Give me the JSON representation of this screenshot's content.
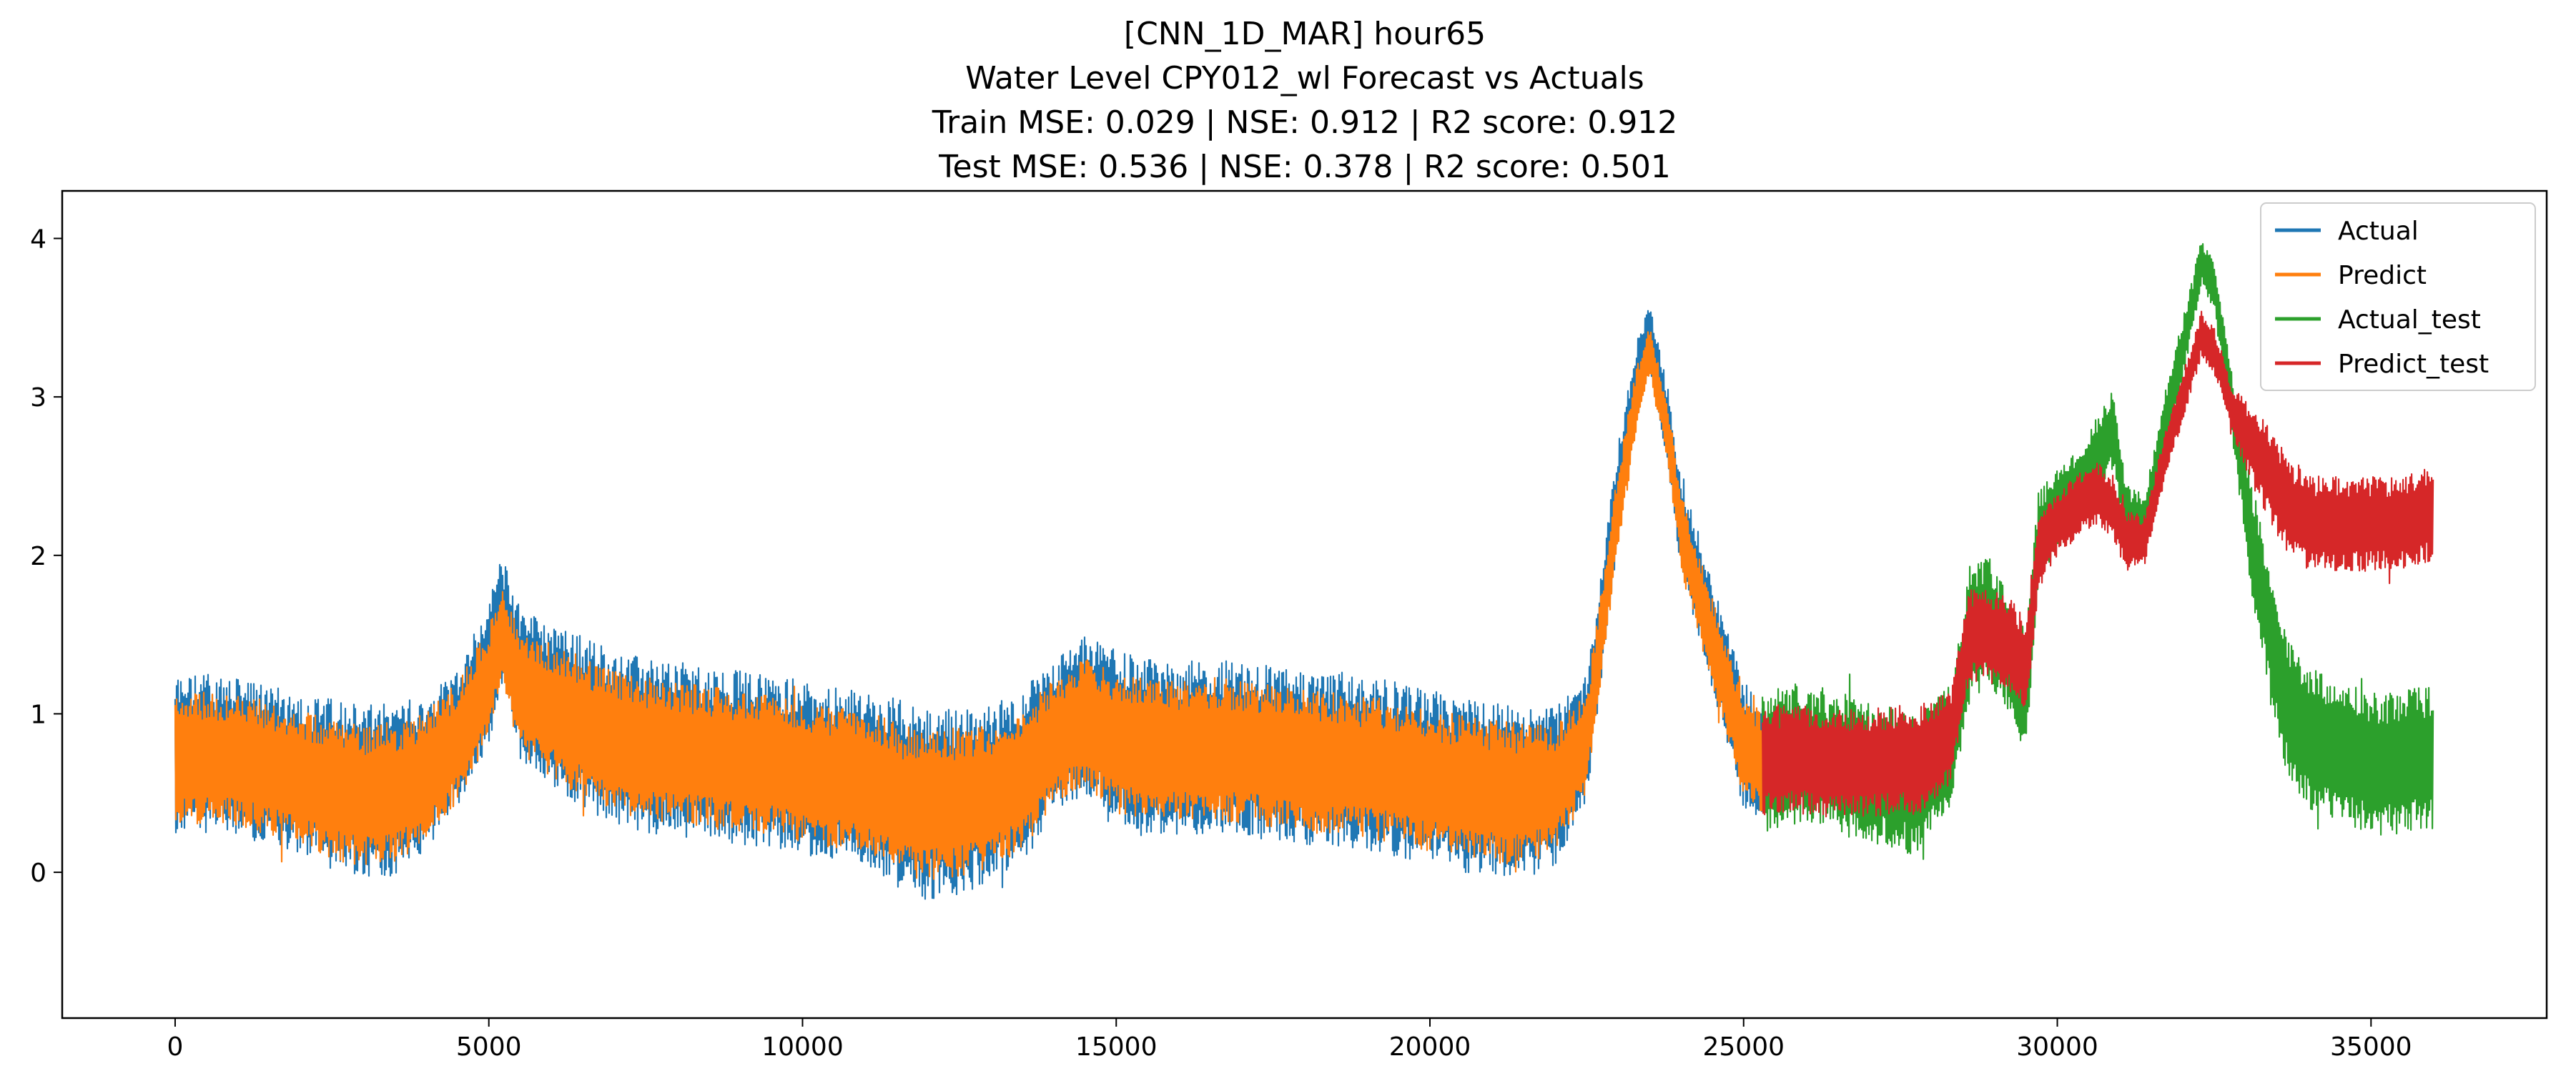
{
  "chart_data": {
    "type": "line",
    "title_lines": [
      "[CNN_1D_MAR] hour65",
      "Water Level CPY012_wl Forecast vs Actuals",
      "Train MSE: 0.029 | NSE: 0.912 | R2 score: 0.912",
      "Test  MSE: 0.536 | NSE: 0.378 | R2 score: 0.501"
    ],
    "xlabel": "",
    "ylabel": "",
    "xlim": [
      -1800,
      37800
    ],
    "ylim": [
      -0.92,
      4.3
    ],
    "x_ticks": [
      0,
      5000,
      10000,
      15000,
      20000,
      25000,
      30000,
      35000
    ],
    "x_tick_labels": [
      "0",
      "5000",
      "10000",
      "15000",
      "20000",
      "25000",
      "30000",
      "35000"
    ],
    "y_ticks": [
      0,
      1,
      2,
      3,
      4
    ],
    "y_tick_labels": [
      "0",
      "1",
      "2",
      "3",
      "4"
    ],
    "grid": false,
    "legend_position": "top-right",
    "series": [
      {
        "name": "Actual",
        "color": "#1f77b4",
        "x": [
          0,
          500,
          1000,
          1500,
          2000,
          2500,
          3000,
          3500,
          4000,
          4500,
          5000,
          5200,
          5500,
          6000,
          6500,
          7000,
          7500,
          8000,
          8500,
          9000,
          9500,
          10000,
          10500,
          11000,
          11500,
          12000,
          12500,
          13000,
          13500,
          14000,
          14500,
          15000,
          15500,
          16000,
          16500,
          17000,
          17500,
          18000,
          18500,
          19000,
          19500,
          20000,
          20500,
          21000,
          21500,
          22000,
          22500,
          23000,
          23300,
          23500,
          23800,
          24000,
          24500,
          25000,
          25300
        ],
        "mean": [
          0.75,
          0.75,
          0.72,
          0.68,
          0.62,
          0.55,
          0.5,
          0.52,
          0.62,
          0.85,
          1.25,
          1.6,
          1.2,
          1.05,
          0.95,
          0.85,
          0.8,
          0.78,
          0.75,
          0.72,
          0.7,
          0.66,
          0.62,
          0.58,
          0.5,
          0.42,
          0.45,
          0.5,
          0.6,
          0.85,
          1.0,
          0.85,
          0.8,
          0.78,
          0.8,
          0.78,
          0.75,
          0.72,
          0.7,
          0.68,
          0.65,
          0.6,
          0.55,
          0.52,
          0.5,
          0.55,
          0.85,
          2.4,
          3.1,
          3.4,
          2.8,
          2.2,
          1.5,
          0.8,
          0.7
        ],
        "amp": [
          0.5,
          0.5,
          0.5,
          0.5,
          0.5,
          0.55,
          0.55,
          0.55,
          0.5,
          0.45,
          0.45,
          0.4,
          0.5,
          0.5,
          0.55,
          0.55,
          0.55,
          0.55,
          0.55,
          0.55,
          0.55,
          0.55,
          0.55,
          0.55,
          0.6,
          0.6,
          0.6,
          0.55,
          0.55,
          0.5,
          0.5,
          0.55,
          0.55,
          0.55,
          0.55,
          0.55,
          0.55,
          0.55,
          0.55,
          0.55,
          0.55,
          0.55,
          0.55,
          0.55,
          0.55,
          0.5,
          0.4,
          0.3,
          0.25,
          0.2,
          0.25,
          0.3,
          0.35,
          0.4,
          0.4
        ]
      },
      {
        "name": "Predict",
        "color": "#ff7f0e",
        "x": [
          0,
          500,
          1000,
          1500,
          2000,
          2500,
          3000,
          3500,
          4000,
          4500,
          5000,
          5200,
          5500,
          6000,
          6500,
          7000,
          7500,
          8000,
          8500,
          9000,
          9500,
          10000,
          10500,
          11000,
          11500,
          12000,
          12500,
          13000,
          13500,
          14000,
          14500,
          15000,
          15500,
          16000,
          16500,
          17000,
          17500,
          18000,
          18500,
          19000,
          19500,
          20000,
          20500,
          21000,
          21500,
          22000,
          22500,
          23000,
          23300,
          23500,
          23800,
          24000,
          24500,
          25000,
          25300
        ],
        "mean": [
          0.7,
          0.72,
          0.7,
          0.66,
          0.6,
          0.53,
          0.48,
          0.5,
          0.6,
          0.82,
          1.2,
          1.5,
          1.15,
          1.02,
          0.92,
          0.83,
          0.78,
          0.76,
          0.73,
          0.7,
          0.68,
          0.64,
          0.6,
          0.56,
          0.48,
          0.42,
          0.44,
          0.48,
          0.58,
          0.82,
          0.95,
          0.82,
          0.78,
          0.76,
          0.78,
          0.76,
          0.73,
          0.7,
          0.68,
          0.66,
          0.63,
          0.58,
          0.54,
          0.51,
          0.49,
          0.54,
          0.82,
          2.3,
          3.0,
          3.3,
          2.75,
          2.15,
          1.45,
          0.78,
          0.7
        ],
        "amp": [
          0.4,
          0.42,
          0.42,
          0.42,
          0.42,
          0.45,
          0.45,
          0.45,
          0.42,
          0.38,
          0.35,
          0.3,
          0.4,
          0.42,
          0.45,
          0.45,
          0.45,
          0.45,
          0.45,
          0.45,
          0.45,
          0.45,
          0.45,
          0.45,
          0.48,
          0.48,
          0.48,
          0.45,
          0.45,
          0.4,
          0.4,
          0.45,
          0.45,
          0.45,
          0.45,
          0.45,
          0.45,
          0.45,
          0.45,
          0.45,
          0.45,
          0.45,
          0.45,
          0.45,
          0.45,
          0.4,
          0.32,
          0.25,
          0.2,
          0.15,
          0.2,
          0.25,
          0.28,
          0.32,
          0.32
        ]
      },
      {
        "name": "Actual_test",
        "color": "#2ca02c",
        "x": [
          25300,
          25800,
          26300,
          26800,
          27300,
          27800,
          28300,
          28600,
          28900,
          29200,
          29500,
          29700,
          30000,
          30300,
          30600,
          30900,
          31100,
          31400,
          31700,
          32000,
          32300,
          32500,
          32800,
          33100,
          33400,
          33700,
          34000,
          34300,
          34600,
          34900,
          35200,
          35500,
          35800,
          36000
        ],
        "mean": [
          0.7,
          0.75,
          0.72,
          0.65,
          0.6,
          0.55,
          0.8,
          1.5,
          1.6,
          1.4,
          1.1,
          2.1,
          2.3,
          2.4,
          2.6,
          2.8,
          2.2,
          2.2,
          2.8,
          3.3,
          3.85,
          3.7,
          2.9,
          2.1,
          1.5,
          1.0,
          0.85,
          0.8,
          0.75,
          0.7,
          0.68,
          0.7,
          0.72,
          0.72
        ],
        "amp": [
          0.45,
          0.45,
          0.45,
          0.45,
          0.45,
          0.45,
          0.4,
          0.45,
          0.4,
          0.4,
          0.4,
          0.3,
          0.25,
          0.25,
          0.25,
          0.25,
          0.25,
          0.2,
          0.2,
          0.2,
          0.15,
          0.15,
          0.2,
          0.35,
          0.45,
          0.45,
          0.45,
          0.45,
          0.45,
          0.45,
          0.45,
          0.45,
          0.45,
          0.45
        ]
      },
      {
        "name": "Predict_test",
        "color": "#d62728",
        "x": [
          25300,
          25800,
          26300,
          26800,
          27300,
          27800,
          28300,
          28600,
          28900,
          29200,
          29500,
          29700,
          30000,
          30300,
          30600,
          30900,
          31100,
          31400,
          31700,
          32000,
          32300,
          32500,
          32800,
          33100,
          33400,
          33700,
          34000,
          34300,
          34600,
          34900,
          35200,
          35500,
          35800,
          36000
        ],
        "mean": [
          0.7,
          0.72,
          0.7,
          0.68,
          0.7,
          0.72,
          0.85,
          1.5,
          1.5,
          1.45,
          1.3,
          2.0,
          2.2,
          2.3,
          2.4,
          2.3,
          2.1,
          2.1,
          2.6,
          3.0,
          3.4,
          3.3,
          2.9,
          2.7,
          2.5,
          2.3,
          2.2,
          2.2,
          2.2,
          2.2,
          2.2,
          2.2,
          2.25,
          2.25
        ],
        "amp": [
          0.35,
          0.35,
          0.35,
          0.35,
          0.35,
          0.35,
          0.3,
          0.3,
          0.3,
          0.3,
          0.3,
          0.25,
          0.2,
          0.2,
          0.2,
          0.2,
          0.2,
          0.15,
          0.15,
          0.15,
          0.15,
          0.15,
          0.15,
          0.25,
          0.3,
          0.3,
          0.3,
          0.3,
          0.3,
          0.3,
          0.3,
          0.3,
          0.3,
          0.3
        ]
      }
    ]
  }
}
